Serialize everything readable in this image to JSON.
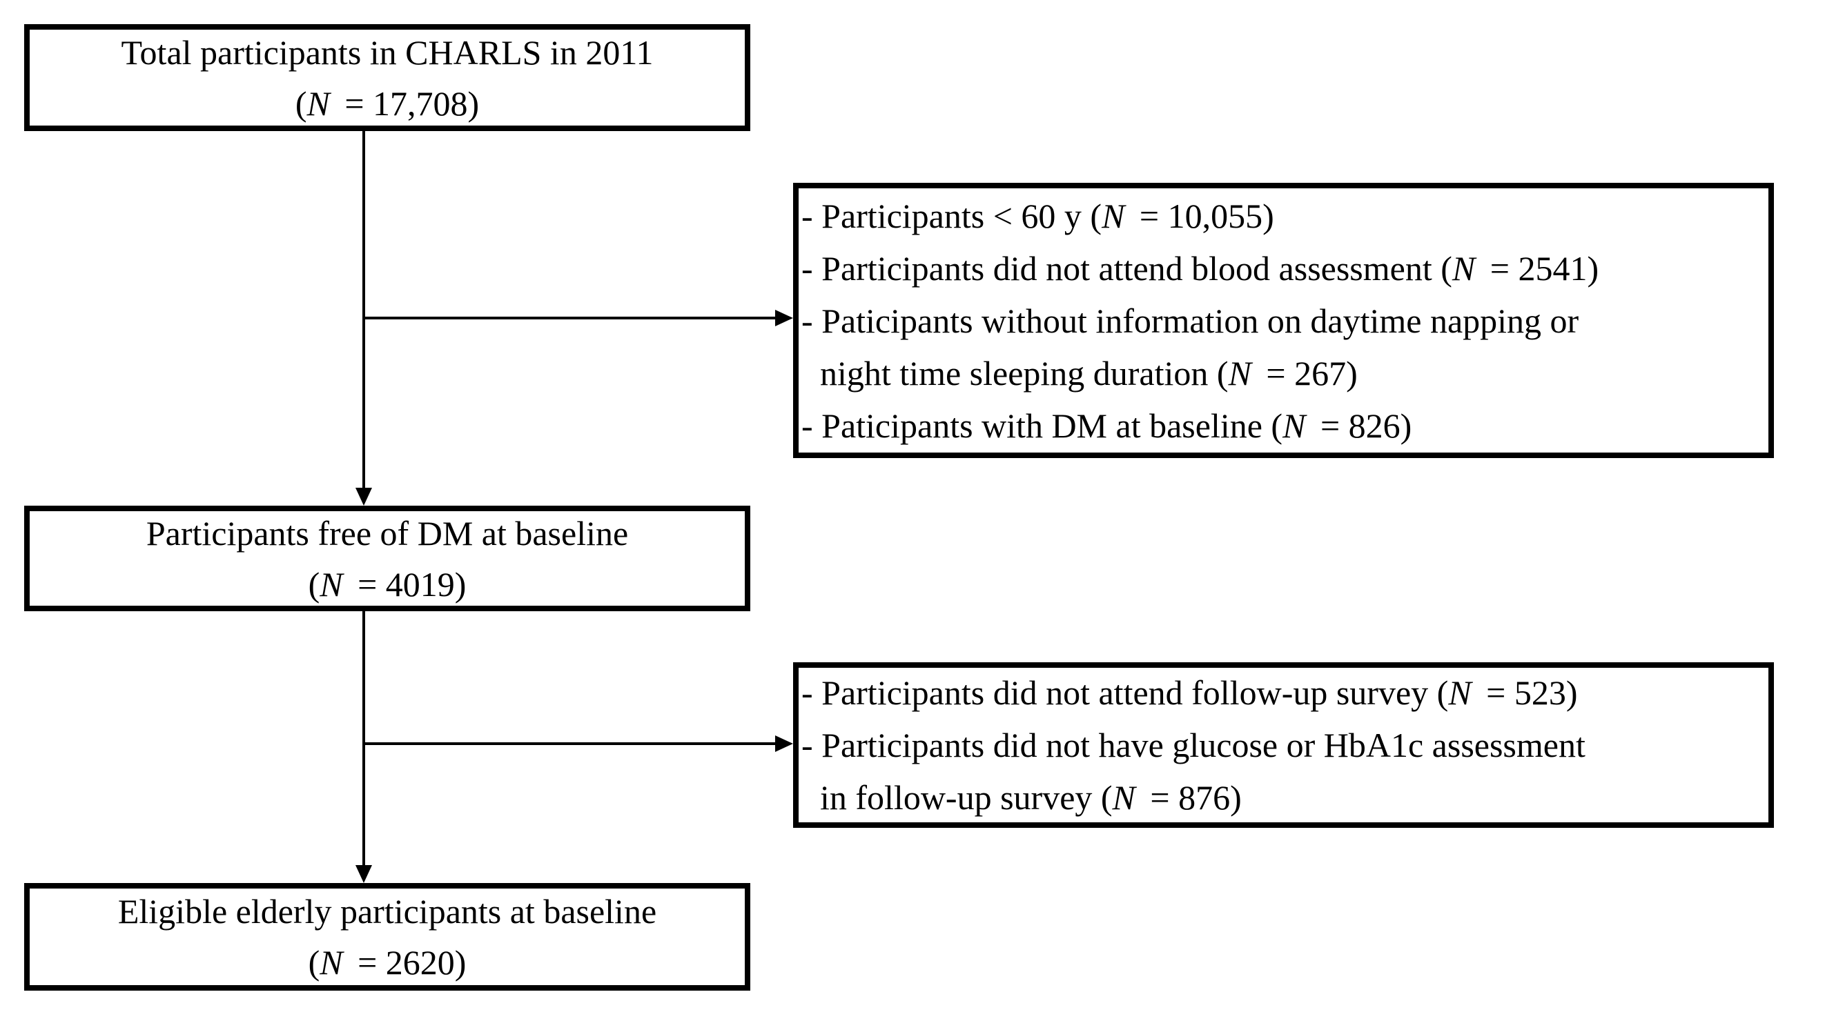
{
  "figure": {
    "background": "#ffffff",
    "ink": "#000000"
  },
  "flow": {
    "top_box": {
      "title": "Total participants in CHARLS in 2011",
      "n_open": "(",
      "n_symbol": "N",
      "n_rest": " = 17,708)"
    },
    "mid_box": {
      "title": "Participants free of DM at baseline",
      "n_open": "(",
      "n_symbol": "N",
      "n_rest": " = 4019)"
    },
    "bottom_box": {
      "title": "Eligible elderly participants at baseline",
      "n_open": "(",
      "n_symbol": "N",
      "n_rest": " = 2620)"
    },
    "exclusion_box_1": {
      "lines": [
        {
          "pre": "- Participants < 60 y (",
          "n_symbol": "N",
          "post": " = 10,055)"
        },
        {
          "pre": "- Participants did not attend blood assessment (",
          "n_symbol": "N",
          "post": " = 2541)"
        },
        {
          "pre": "- Paticipants without information on daytime napping or"
        },
        {
          "pre": "night time sleeping duration (",
          "n_symbol": "N",
          "post": " = 267)"
        },
        {
          "pre": "- Paticipants with DM at baseline (",
          "n_symbol": "N",
          "post": " = 826)"
        }
      ]
    },
    "exclusion_box_2": {
      "lines": [
        {
          "pre": "- Participants did not attend follow-up survey (",
          "n_symbol": "N",
          "post": " = 523)"
        },
        {
          "pre": "- Participants did not have glucose or HbA1c assessment"
        },
        {
          "pre": "in follow-up survey (",
          "n_symbol": "N",
          "post": " = 876)"
        }
      ]
    }
  }
}
